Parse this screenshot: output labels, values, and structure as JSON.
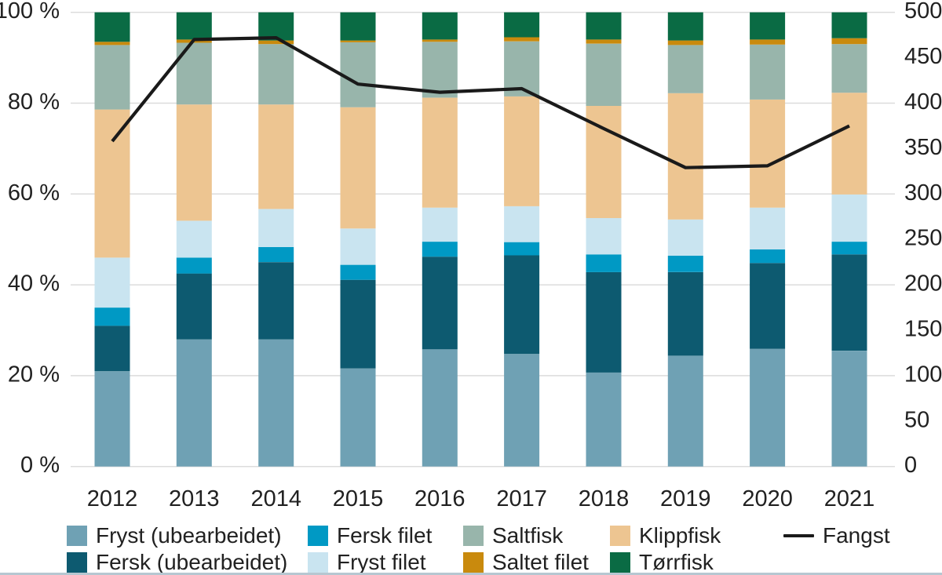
{
  "chart_data": {
    "type": "bar",
    "variant": "stacked-percent-with-line",
    "stacked": true,
    "categories": [
      "2012",
      "2013",
      "2014",
      "2015",
      "2016",
      "2017",
      "2018",
      "2019",
      "2020",
      "2021"
    ],
    "series": [
      {
        "name": "Fryst (ubearbeidet)",
        "color": "#6FA1B4",
        "values": [
          21.0,
          28.0,
          28.0,
          21.6,
          25.8,
          24.8,
          20.7,
          24.4,
          25.9,
          25.5
        ]
      },
      {
        "name": "Fersk (ubearbeidet)",
        "color": "#0D5A70",
        "values": [
          10.0,
          14.5,
          17.0,
          19.5,
          20.4,
          21.7,
          22.1,
          18.4,
          18.9,
          21.2
        ]
      },
      {
        "name": "Fersk filet",
        "color": "#0099C4",
        "values": [
          4.0,
          3.5,
          3.3,
          3.3,
          3.3,
          2.9,
          3.9,
          3.6,
          3.0,
          2.8
        ]
      },
      {
        "name": "Fryst filet",
        "color": "#C9E4F0",
        "values": [
          11.0,
          8.1,
          8.4,
          8.0,
          7.5,
          7.9,
          8.0,
          8.0,
          9.2,
          10.4
        ]
      },
      {
        "name": "Klippfisk",
        "color": "#EDC591",
        "values": [
          32.6,
          25.6,
          23.0,
          26.7,
          24.2,
          24.2,
          24.7,
          27.8,
          23.8,
          22.4
        ]
      },
      {
        "name": "Saltfisk",
        "color": "#98B5AB",
        "values": [
          14.2,
          13.6,
          13.3,
          14.3,
          12.3,
          12.1,
          13.7,
          10.6,
          12.1,
          10.7
        ]
      },
      {
        "name": "Saltet filet",
        "color": "#C98A0D",
        "values": [
          0.7,
          0.7,
          0.8,
          0.4,
          0.5,
          0.9,
          0.9,
          1.0,
          1.1,
          1.3
        ]
      },
      {
        "name": "Tørrfisk",
        "color": "#0A6B44",
        "values": [
          6.5,
          6.0,
          6.2,
          6.2,
          6.0,
          5.5,
          6.0,
          6.2,
          6.0,
          5.7
        ]
      }
    ],
    "line_series": {
      "name": "Fangst",
      "color": "#1A1A1A",
      "axis": "right",
      "values": [
        358,
        470,
        472,
        421,
        412,
        416,
        372,
        329,
        331,
        375
      ]
    },
    "left_axis": {
      "min": 0,
      "max": 100,
      "tick_values": [
        0,
        20,
        40,
        60,
        80,
        100
      ],
      "tick_labels": [
        "0 %",
        "20 %",
        "40 %",
        "60 %",
        "80 %",
        "100 %"
      ]
    },
    "right_axis": {
      "min": 0,
      "max": 500,
      "tick_values": [
        0,
        50,
        100,
        150,
        200,
        250,
        300,
        350,
        400,
        450,
        500
      ],
      "tick_labels": [
        "0",
        "50",
        "100",
        "150",
        "200",
        "250",
        "300",
        "350",
        "400",
        "450",
        "500"
      ]
    },
    "grid": "horizontal",
    "legend_position": "bottom",
    "legend": {
      "rows": [
        [
          "Fryst (ubearbeidet)",
          "Fersk filet",
          "Saltfisk",
          "Klippfisk",
          "Fangst"
        ],
        [
          "Fersk (ubearbeidet)",
          "Fryst filet",
          "Saltet filet",
          "Tørrfisk"
        ]
      ]
    },
    "colors": {
      "gridline": "#DCDCDC",
      "axis_text": "#212121",
      "fangst_line": "#1A1A1A"
    }
  }
}
